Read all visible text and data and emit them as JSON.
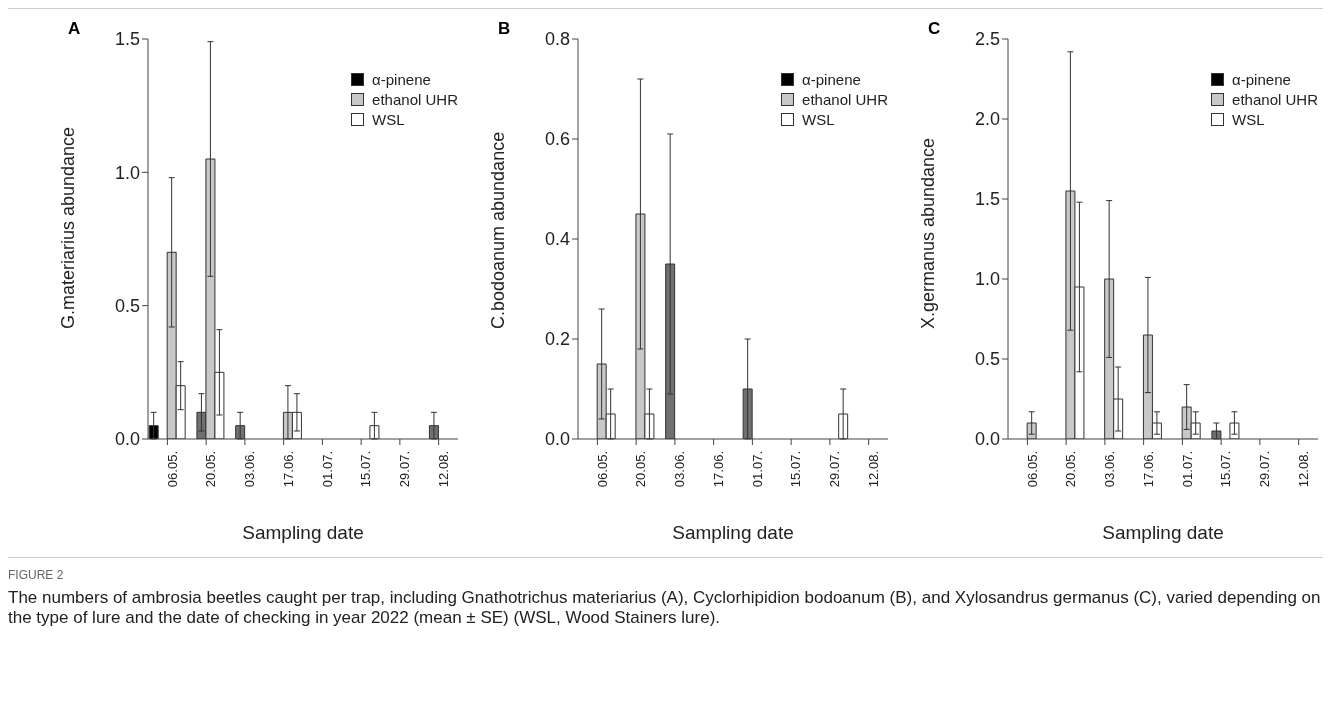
{
  "chart_data": [
    {
      "type": "bar",
      "title": "A",
      "xlabel": "Sampling date",
      "ylabel": "G.materiarius abundance",
      "categories": [
        "06.05.",
        "20.05.",
        "03.06.",
        "17.06.",
        "01.07.",
        "15.07.",
        "29.07.",
        "12.08."
      ],
      "ylim": [
        0,
        1.5
      ],
      "yticks": [
        {
          "value": 0,
          "label": "0.0"
        },
        0.5,
        {
          "value": 1,
          "label": "1.0"
        },
        1.5
      ],
      "legend": "top right",
      "series": [
        {
          "name": "α-pinene",
          "color": "#000000",
          "values": [
            0.05,
            null,
            null,
            null,
            null,
            null,
            null,
            null
          ],
          "errors": [
            0.05,
            null,
            null,
            null,
            null,
            null,
            null,
            null
          ]
        },
        {
          "color": "#707070",
          "values": [
            null,
            0.1,
            0.05,
            null,
            null,
            null,
            null,
            0.05
          ],
          "errors": [
            null,
            0.07,
            0.05,
            null,
            null,
            null,
            null,
            0.05
          ]
        },
        {
          "name": "ethanol UHR",
          "color": "#c8c8c8",
          "values": [
            0.7,
            1.05,
            null,
            0.1,
            null,
            null,
            null,
            null
          ],
          "errors": [
            0.28,
            0.44,
            null,
            0.1,
            null,
            null,
            null,
            null
          ]
        },
        {
          "name": "WSL",
          "color": "#ffffff",
          "values": [
            0.2,
            0.25,
            null,
            0.1,
            null,
            0.05,
            null,
            null
          ],
          "errors": [
            0.09,
            0.16,
            null,
            0.07,
            null,
            0.05,
            null,
            null
          ]
        }
      ],
      "annotations": [
        "FIGURE 2",
        "The numbers of ambrosia beetles caught per trap, including Gnathotrichus materiarius (A), Cyclorhipidion bodoanum (B), and Xylosandrus germanus (C), varied depending on the type of lure and the date of checking in year 2022 (mean ± SE) (WSL, Wood Stainers lure)."
      ]
    },
    {
      "type": "bar",
      "title": "B",
      "xlabel": "Sampling date",
      "ylabel": "C.bodoanum abundance",
      "categories": [
        "06.05.",
        "20.05.",
        "03.06.",
        "17.06.",
        "01.07.",
        "15.07.",
        "29.07.",
        "12.08."
      ],
      "ylim": [
        0,
        0.8
      ],
      "yticks": [
        {
          "value": 0,
          "label": "0.0"
        },
        0.2,
        0.4,
        0.6,
        0.8
      ],
      "legend": "top right",
      "series": [
        {
          "name": "α-pinene",
          "color": "#000000",
          "values": [
            null,
            null,
            null,
            null,
            null,
            null,
            null,
            null
          ],
          "errors": [
            null,
            null,
            null,
            null,
            null,
            null,
            null,
            null
          ]
        },
        {
          "color": "#707070",
          "values": [
            null,
            null,
            0.35,
            null,
            0.1,
            null,
            null,
            null
          ],
          "errors": [
            null,
            null,
            0.26,
            null,
            0.1,
            null,
            null,
            null
          ]
        },
        {
          "name": "ethanol UHR",
          "color": "#c8c8c8",
          "values": [
            0.15,
            0.45,
            null,
            null,
            null,
            null,
            null,
            null
          ],
          "errors": [
            0.11,
            0.27,
            null,
            null,
            null,
            null,
            null,
            null
          ]
        },
        {
          "name": "WSL",
          "color": "#ffffff",
          "values": [
            0.05,
            0.05,
            null,
            null,
            null,
            null,
            0.05,
            null
          ],
          "errors": [
            0.05,
            0.05,
            null,
            null,
            null,
            null,
            0.05,
            null
          ]
        }
      ]
    },
    {
      "type": "bar",
      "title": "C",
      "xlabel": "Sampling date",
      "ylabel": "X.germanus abundance",
      "categories": [
        "06.05.",
        "20.05.",
        "03.06.",
        "17.06.",
        "01.07.",
        "15.07.",
        "29.07.",
        "12.08."
      ],
      "ylim": [
        0,
        2.5
      ],
      "yticks": [
        {
          "value": 0,
          "label": "0.0"
        },
        0.5,
        {
          "value": 1,
          "label": "1.0"
        },
        1.5,
        {
          "value": 2,
          "label": "2.0"
        },
        2.5
      ],
      "legend": "top right",
      "series": [
        {
          "name": "α-pinene",
          "color": "#000000",
          "values": [
            null,
            null,
            null,
            null,
            null,
            null,
            null,
            null
          ],
          "errors": [
            null,
            null,
            null,
            null,
            null,
            null,
            null,
            null
          ]
        },
        {
          "color": "#707070",
          "values": [
            null,
            null,
            null,
            null,
            null,
            0.05,
            null,
            null
          ],
          "errors": [
            null,
            null,
            null,
            null,
            null,
            0.05,
            null,
            null
          ]
        },
        {
          "name": "ethanol UHR",
          "color": "#c8c8c8",
          "values": [
            0.1,
            1.55,
            1.0,
            0.65,
            0.2,
            null,
            null,
            null
          ],
          "errors": [
            0.07,
            0.87,
            0.49,
            0.36,
            0.14,
            null,
            null,
            null
          ]
        },
        {
          "name": "WSL",
          "color": "#ffffff",
          "values": [
            null,
            0.95,
            0.25,
            0.1,
            0.1,
            0.1,
            null,
            null
          ],
          "errors": [
            null,
            0.53,
            0.2,
            0.07,
            0.07,
            0.07,
            null,
            null
          ]
        }
      ]
    }
  ]
}
